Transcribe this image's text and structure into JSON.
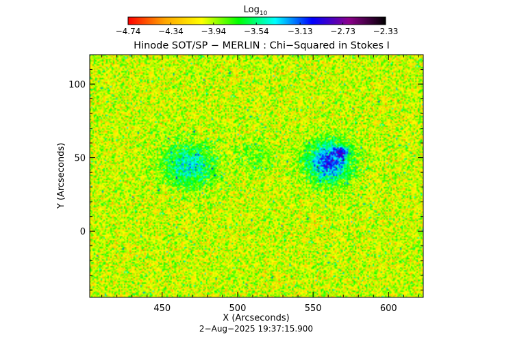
{
  "chart_data": {
    "type": "heatmap",
    "title": "Hinode SOT/SP − MERLIN : Chi−Squared in Stokes I",
    "subtitle": "2−Aug−2025 19:37:15.900",
    "xlabel": "X (Arcseconds)",
    "ylabel": "Y (Arcseconds)",
    "xlim": [
      402,
      623
    ],
    "ylim": [
      -45,
      120
    ],
    "x_ticks": [
      450,
      500,
      550,
      600
    ],
    "y_ticks": [
      0,
      50,
      100
    ],
    "x_tick_labels": [
      "450",
      "500",
      "550",
      "600"
    ],
    "y_tick_labels": [
      "0",
      "50",
      "100"
    ],
    "colorbar": {
      "label_base": "Log",
      "label_sub": "10",
      "ticks": [
        -4.74,
        -4.34,
        -3.94,
        -3.54,
        -3.13,
        -2.73,
        -2.33
      ],
      "tick_labels": [
        "−4.74",
        "−4.34",
        "−3.94",
        "−3.54",
        "−3.13",
        "−2.73",
        "−2.33"
      ],
      "range": [
        -4.74,
        -2.33
      ],
      "colormap": [
        "#ff0000",
        "#ffa500",
        "#ffff00",
        "#00ff00",
        "#00ffff",
        "#0000ff",
        "#8b008b",
        "#000000"
      ]
    },
    "background_level": -4.0,
    "regions": [
      {
        "x": 468,
        "y": 45,
        "sigma_x": 20,
        "sigma_y": 17,
        "peak": -3.4
      },
      {
        "x": 561,
        "y": 47,
        "sigma_x": 17,
        "sigma_y": 16,
        "peak": -3.05
      },
      {
        "x": 567,
        "y": 53,
        "sigma_x": 9,
        "sigma_y": 7,
        "peak": -2.85
      },
      {
        "x": 512,
        "y": 50,
        "sigma_x": 14,
        "sigma_y": 13,
        "peak": -3.8
      }
    ]
  }
}
